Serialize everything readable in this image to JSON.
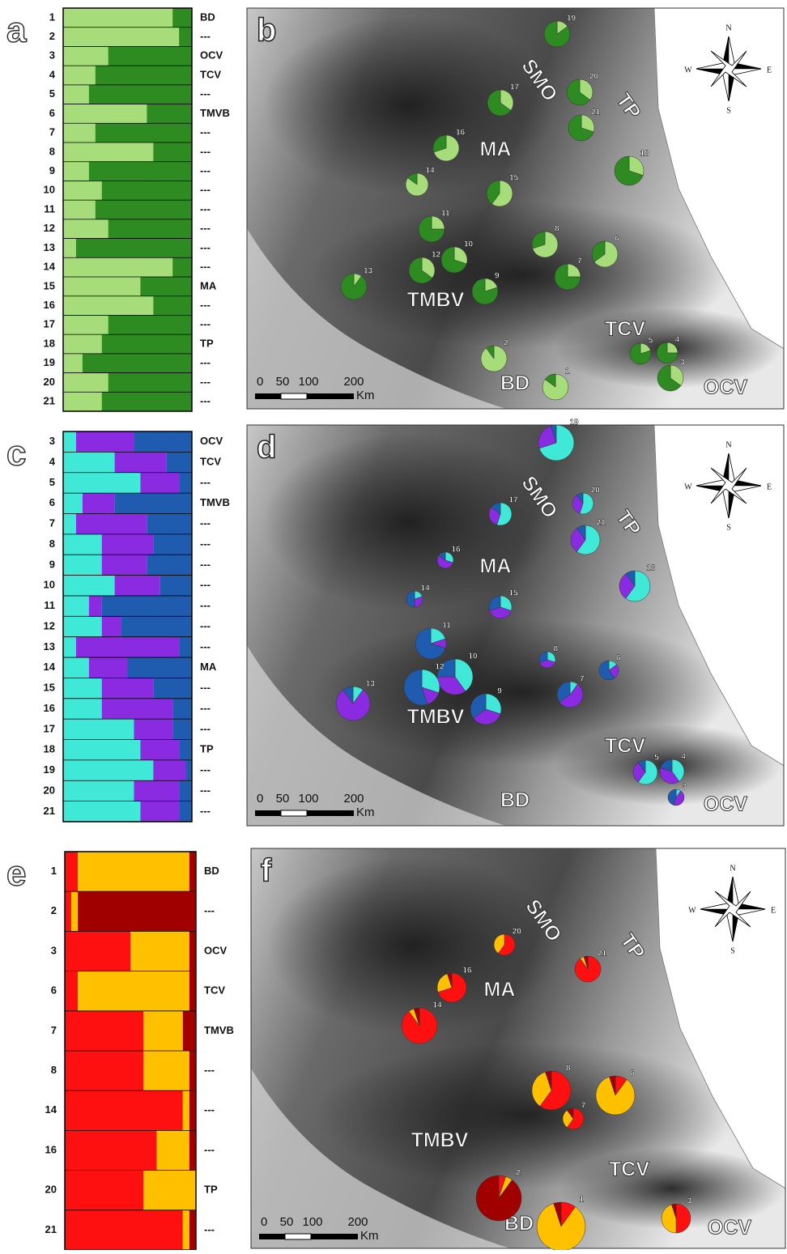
{
  "figure": {
    "panels": [
      {
        "structure_label": "a",
        "map_label": "b",
        "colors": [
          "#a6dc7a",
          "#2e8b22"
        ],
        "populations": [
          {
            "id": "1",
            "region": "BD",
            "shares": [
              0.85,
              0.15
            ]
          },
          {
            "id": "2",
            "region": "---",
            "shares": [
              0.9,
              0.1
            ]
          },
          {
            "id": "3",
            "region": "OCV",
            "shares": [
              0.35,
              0.65
            ]
          },
          {
            "id": "4",
            "region": "TCV",
            "shares": [
              0.25,
              0.75
            ]
          },
          {
            "id": "5",
            "region": "---",
            "shares": [
              0.2,
              0.8
            ]
          },
          {
            "id": "6",
            "region": "TMVB",
            "shares": [
              0.65,
              0.35
            ]
          },
          {
            "id": "7",
            "region": "---",
            "shares": [
              0.25,
              0.75
            ]
          },
          {
            "id": "8",
            "region": "---",
            "shares": [
              0.7,
              0.3
            ]
          },
          {
            "id": "9",
            "region": "---",
            "shares": [
              0.2,
              0.8
            ]
          },
          {
            "id": "10",
            "region": "---",
            "shares": [
              0.3,
              0.7
            ]
          },
          {
            "id": "11",
            "region": "---",
            "shares": [
              0.25,
              0.75
            ]
          },
          {
            "id": "12",
            "region": "---",
            "shares": [
              0.35,
              0.65
            ]
          },
          {
            "id": "13",
            "region": "---",
            "shares": [
              0.1,
              0.9
            ]
          },
          {
            "id": "14",
            "region": "---",
            "shares": [
              0.85,
              0.15
            ]
          },
          {
            "id": "15",
            "region": "MA",
            "shares": [
              0.6,
              0.4
            ]
          },
          {
            "id": "16",
            "region": "---",
            "shares": [
              0.7,
              0.3
            ]
          },
          {
            "id": "17",
            "region": "---",
            "shares": [
              0.35,
              0.65
            ]
          },
          {
            "id": "18",
            "region": "TP",
            "shares": [
              0.3,
              0.7
            ]
          },
          {
            "id": "19",
            "region": "---",
            "shares": [
              0.15,
              0.85
            ]
          },
          {
            "id": "20",
            "region": "---",
            "shares": [
              0.35,
              0.65
            ]
          },
          {
            "id": "21",
            "region": "---",
            "shares": [
              0.3,
              0.7
            ]
          }
        ],
        "regions": [
          "SMO",
          "TP",
          "MA",
          "TMBV",
          "TCV",
          "BD",
          "OCV"
        ],
        "scale": {
          "ticks": [
            "0",
            "50",
            "100",
            "200"
          ],
          "unit": "Km"
        },
        "compass": [
          "N",
          "S",
          "E",
          "W"
        ]
      },
      {
        "structure_label": "c",
        "map_label": "d",
        "colors": [
          "#40e8d8",
          "#8a2be2",
          "#1f5cb0"
        ],
        "populations": [
          {
            "id": "3",
            "region": "OCV",
            "shares": [
              0.1,
              0.45,
              0.45
            ]
          },
          {
            "id": "4",
            "region": "TCV",
            "shares": [
              0.4,
              0.4,
              0.2
            ]
          },
          {
            "id": "5",
            "region": "---",
            "shares": [
              0.6,
              0.3,
              0.1
            ]
          },
          {
            "id": "6",
            "region": "TMVB",
            "shares": [
              0.15,
              0.25,
              0.6
            ]
          },
          {
            "id": "7",
            "region": "---",
            "shares": [
              0.1,
              0.55,
              0.35
            ]
          },
          {
            "id": "8",
            "region": "---",
            "shares": [
              0.3,
              0.4,
              0.3
            ]
          },
          {
            "id": "9",
            "region": "---",
            "shares": [
              0.3,
              0.35,
              0.35
            ]
          },
          {
            "id": "10",
            "region": "---",
            "shares": [
              0.4,
              0.35,
              0.25
            ]
          },
          {
            "id": "11",
            "region": "---",
            "shares": [
              0.2,
              0.1,
              0.7
            ]
          },
          {
            "id": "12",
            "region": "---",
            "shares": [
              0.3,
              0.15,
              0.55
            ]
          },
          {
            "id": "13",
            "region": "---",
            "shares": [
              0.1,
              0.8,
              0.1
            ]
          },
          {
            "id": "14",
            "region": "MA",
            "shares": [
              0.2,
              0.3,
              0.5
            ]
          },
          {
            "id": "15",
            "region": "---",
            "shares": [
              0.3,
              0.4,
              0.3
            ]
          },
          {
            "id": "16",
            "region": "---",
            "shares": [
              0.3,
              0.55,
              0.15
            ]
          },
          {
            "id": "17",
            "region": "---",
            "shares": [
              0.55,
              0.3,
              0.15
            ]
          },
          {
            "id": "18",
            "region": "TP",
            "shares": [
              0.6,
              0.3,
              0.1
            ]
          },
          {
            "id": "19",
            "region": "---",
            "shares": [
              0.7,
              0.25,
              0.05
            ]
          },
          {
            "id": "20",
            "region": "---",
            "shares": [
              0.55,
              0.35,
              0.1
            ]
          },
          {
            "id": "21",
            "region": "---",
            "shares": [
              0.6,
              0.3,
              0.1
            ]
          }
        ],
        "regions": [
          "SMO",
          "TP",
          "MA",
          "TMBV",
          "TCV",
          "BD",
          "OCV"
        ],
        "scale": {
          "ticks": [
            "0",
            "50",
            "100",
            "200"
          ],
          "unit": "Km"
        },
        "compass": [
          "N",
          "S",
          "E",
          "W"
        ]
      },
      {
        "structure_label": "e",
        "map_label": "f",
        "colors": [
          "#ff1010",
          "#ffc000",
          "#a00000"
        ],
        "populations": [
          {
            "id": "1",
            "region": "BD",
            "shares": [
              0.1,
              0.85,
              0.05
            ]
          },
          {
            "id": "2",
            "region": "---",
            "shares": [
              0.05,
              0.05,
              0.9
            ]
          },
          {
            "id": "3",
            "region": "OCV",
            "shares": [
              0.5,
              0.45,
              0.05
            ]
          },
          {
            "id": "6",
            "region": "TCV",
            "shares": [
              0.1,
              0.85,
              0.05
            ]
          },
          {
            "id": "7",
            "region": "TMVB",
            "shares": [
              0.6,
              0.3,
              0.1
            ]
          },
          {
            "id": "8",
            "region": "---",
            "shares": [
              0.6,
              0.35,
              0.05
            ]
          },
          {
            "id": "14",
            "region": "---",
            "shares": [
              0.9,
              0.05,
              0.05
            ]
          },
          {
            "id": "16",
            "region": "---",
            "shares": [
              0.7,
              0.25,
              0.05
            ]
          },
          {
            "id": "20",
            "region": "TP",
            "shares": [
              0.6,
              0.4,
              0
            ]
          },
          {
            "id": "21",
            "region": "---",
            "shares": [
              0.9,
              0.05,
              0.05
            ]
          }
        ],
        "regions": [
          "SMO",
          "TP",
          "MA",
          "TMBV",
          "TCV",
          "BD",
          "OCV"
        ],
        "scale": {
          "ticks": [
            "0",
            "50",
            "100",
            "200"
          ],
          "unit": "Km"
        },
        "compass": [
          "N",
          "S",
          "E",
          "W"
        ]
      }
    ]
  }
}
